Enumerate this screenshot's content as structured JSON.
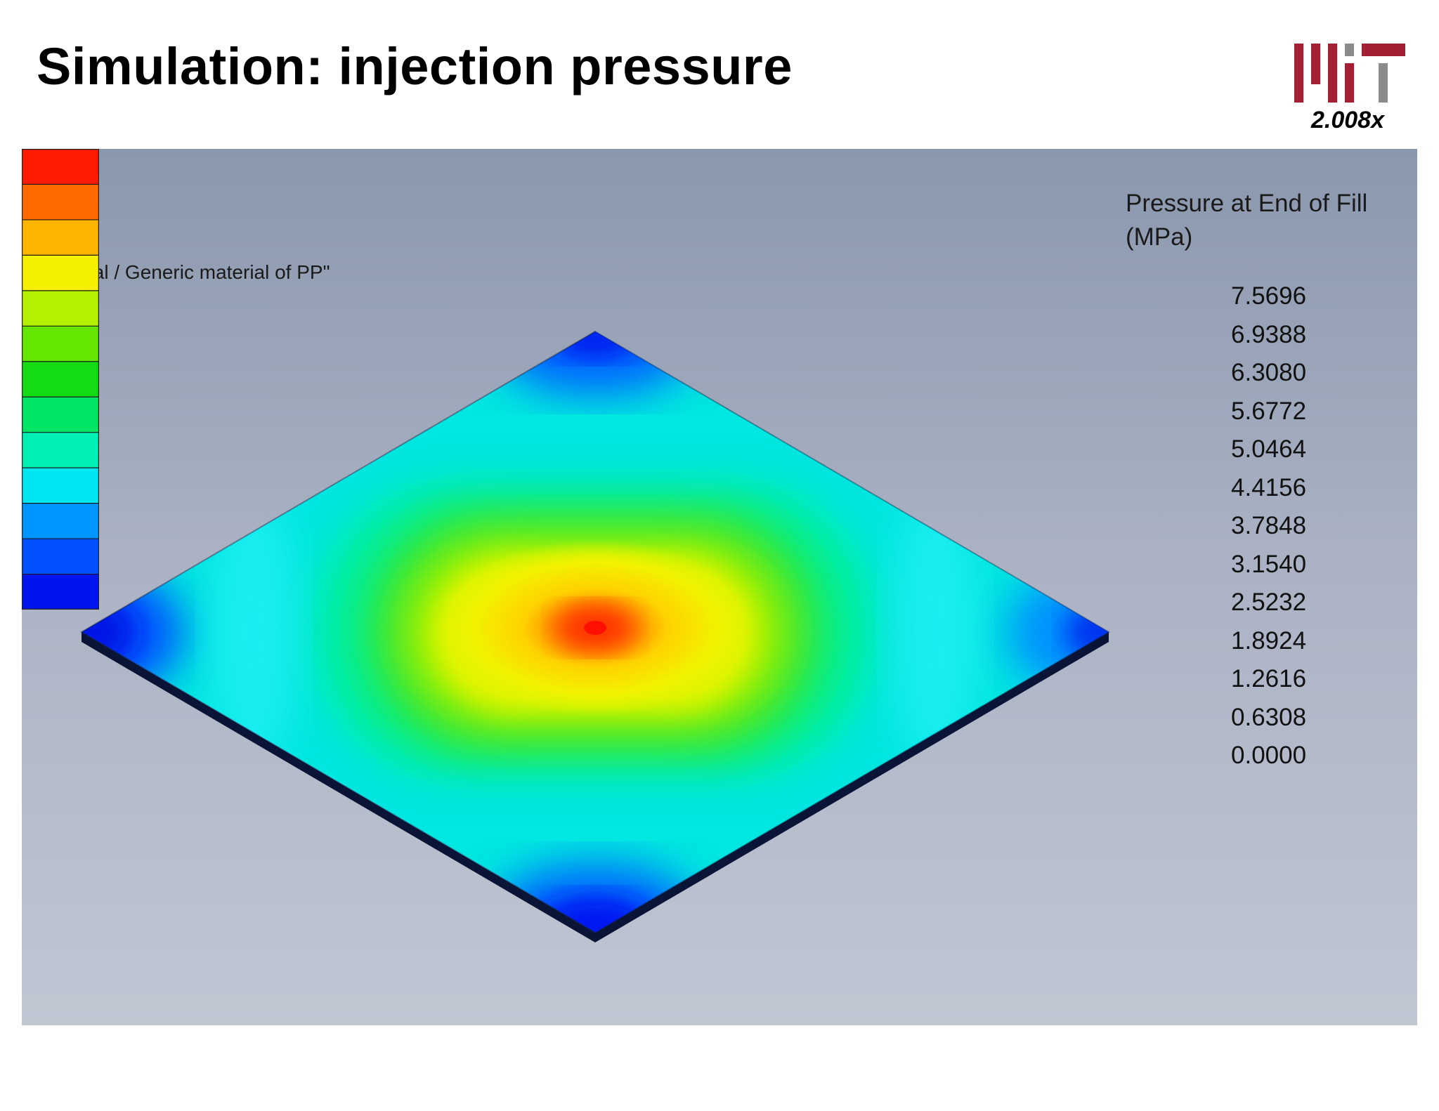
{
  "slide": {
    "title": "Simulation: injection pressure"
  },
  "logo": {
    "name": "mit-logo",
    "course_label": "2.008x",
    "colors": {
      "primary": "#a31f34",
      "secondary": "#8a8b8c"
    }
  },
  "simulation": {
    "material_text": "ic material / Generic material of PP\"",
    "legend": {
      "title": "Pressure at End of Fill",
      "unit": "(MPa)",
      "values": [
        "7.5696",
        "6.9388",
        "6.3080",
        "5.6772",
        "5.0464",
        "4.4156",
        "3.7848",
        "3.1540",
        "2.5232",
        "1.8924",
        "1.2616",
        "0.6308",
        "0.0000"
      ],
      "colors": [
        "#ff1a00",
        "#ff6a00",
        "#ffb400",
        "#f5f000",
        "#b4f000",
        "#64e600",
        "#14dc14",
        "#00e664",
        "#00f0b4",
        "#00e6f0",
        "#0096ff",
        "#0050ff",
        "#0014f0"
      ]
    },
    "colormap": {
      "max_color": "#ff1a00",
      "min_color": "#0014f0"
    }
  }
}
